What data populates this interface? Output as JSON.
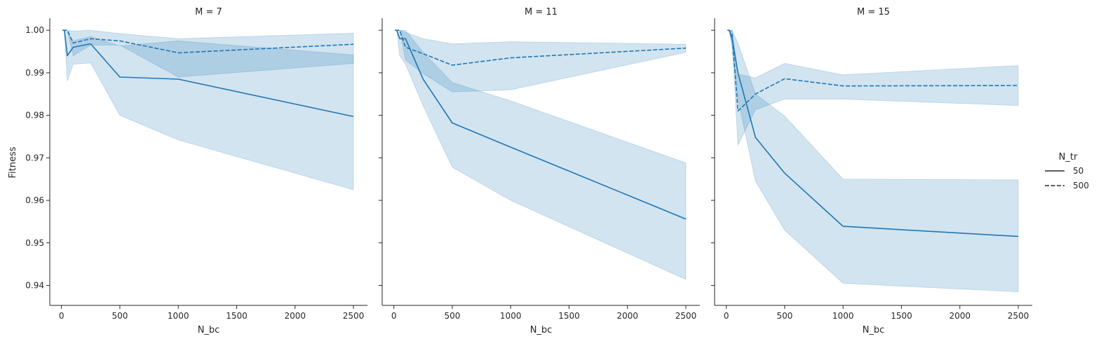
{
  "chart_data": {
    "type": "line",
    "ylabel": "Fitness",
    "xlabel": "N_bc",
    "xlim": [
      -100,
      2620
    ],
    "ylim": [
      0.9353,
      1.0025
    ],
    "xticks": [
      0,
      500,
      1000,
      1500,
      2000,
      2500
    ],
    "yticks": [
      0.94,
      0.95,
      0.96,
      0.97,
      0.98,
      0.99,
      1.0
    ],
    "ytick_labels": [
      "0.94",
      "0.95",
      "0.96",
      "0.97",
      "0.98",
      "0.99",
      "1.00"
    ],
    "color": "#1f77b4",
    "legend": {
      "title": "N_tr",
      "position": "right",
      "entries": [
        {
          "label": "50",
          "style": "solid"
        },
        {
          "label": "500",
          "style": "dashed"
        }
      ]
    },
    "panels": [
      {
        "title": "M = 7",
        "series": [
          {
            "name": "50",
            "style": "solid",
            "x": [
              10,
              25,
              50,
              100,
              250,
              500,
              1000,
              2500
            ],
            "y": [
              1.0,
              1.0,
              0.994,
              0.996,
              0.9968,
              0.989,
              0.9885,
              0.9797
            ],
            "lower": [
              1.0,
              1.0,
              0.988,
              0.992,
              0.9923,
              0.98,
              0.9742,
              0.9625
            ],
            "upper": [
              1.0,
              1.0,
              0.9995,
              0.9975,
              0.9985,
              0.9963,
              0.9975,
              0.9942
            ]
          },
          {
            "name": "500",
            "style": "dashed",
            "x": [
              10,
              25,
              50,
              100,
              250,
              500,
              1000,
              2500
            ],
            "y": [
              1.0,
              1.0,
              1.0,
              0.997,
              0.998,
              0.9975,
              0.9947,
              0.9967
            ],
            "lower": [
              1.0,
              1.0,
              1.0,
              0.994,
              0.9965,
              0.9965,
              0.989,
              0.9922
            ],
            "upper": [
              1.0,
              1.0,
              1.0,
              0.9998,
              1.0,
              0.9992,
              0.998,
              0.9993
            ]
          }
        ]
      },
      {
        "title": "M = 11",
        "series": [
          {
            "name": "50",
            "style": "solid",
            "x": [
              10,
              25,
              50,
              100,
              250,
              500,
              1000,
              2500
            ],
            "y": [
              1.0,
              1.0,
              0.998,
              0.998,
              0.9885,
              0.9782,
              0.9725,
              0.9556
            ],
            "lower": [
              1.0,
              1.0,
              0.994,
              0.992,
              0.9823,
              0.9678,
              0.96,
              0.9414
            ],
            "upper": [
              1.0,
              1.0,
              1.0,
              1.0,
              0.9948,
              0.9877,
              0.9834,
              0.9688
            ]
          },
          {
            "name": "500",
            "style": "dashed",
            "x": [
              10,
              25,
              50,
              100,
              250,
              500,
              1000,
              2500
            ],
            "y": [
              1.0,
              1.0,
              1.0,
              0.996,
              0.9945,
              0.9918,
              0.9935,
              0.9958
            ],
            "lower": [
              1.0,
              1.0,
              1.0,
              0.993,
              0.9898,
              0.9855,
              0.986,
              0.9948
            ],
            "upper": [
              1.0,
              1.0,
              1.0,
              0.9995,
              0.998,
              0.9968,
              0.9973,
              0.9967
            ]
          }
        ]
      },
      {
        "title": "M = 15",
        "series": [
          {
            "name": "50",
            "style": "solid",
            "x": [
              10,
              25,
              50,
              100,
              250,
              500,
              1000,
              2500
            ],
            "y": [
              1.0,
              1.0,
              0.998,
              0.99,
              0.9748,
              0.9664,
              0.9539,
              0.9515
            ],
            "lower": [
              1.0,
              1.0,
              0.9955,
              0.9838,
              0.9645,
              0.953,
              0.9405,
              0.9385
            ],
            "upper": [
              1.0,
              1.0,
              1.0,
              0.997,
              0.985,
              0.9798,
              0.965,
              0.9648
            ]
          },
          {
            "name": "500",
            "style": "dashed",
            "x": [
              10,
              25,
              50,
              100,
              250,
              500,
              1000,
              2500
            ],
            "y": [
              1.0,
              1.0,
              0.999,
              0.981,
              0.985,
              0.9886,
              0.9869,
              0.987
            ],
            "lower": [
              1.0,
              1.0,
              0.997,
              0.973,
              0.9813,
              0.9838,
              0.9838,
              0.9823
            ],
            "upper": [
              1.0,
              1.0,
              1.0,
              0.9897,
              0.9888,
              0.9922,
              0.9895,
              0.9917
            ]
          }
        ]
      }
    ]
  }
}
